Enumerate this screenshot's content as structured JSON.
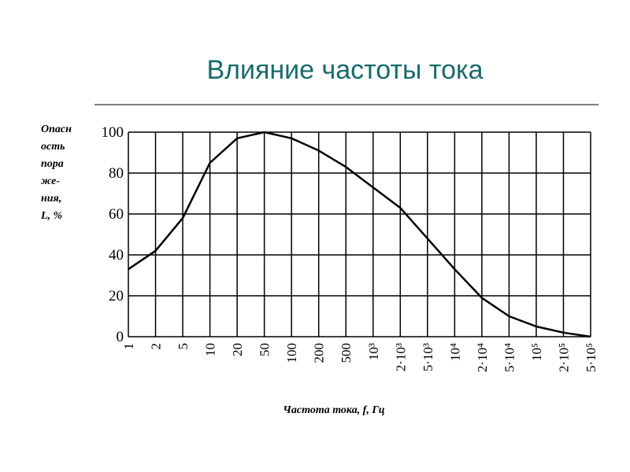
{
  "chart_data": {
    "type": "line",
    "title": "Влияние частоты тока",
    "y_label_lines": [
      "Опасн",
      "ость",
      "пора",
      "же-",
      "ния,",
      "L, %"
    ],
    "x_label": "Частота тока, f, Гц",
    "categories": [
      "1",
      "2",
      "5",
      "10",
      "20",
      "50",
      "100",
      "200",
      "500",
      "10³",
      "2·10³",
      "5·10³",
      "10⁴",
      "2·10⁴",
      "5·10⁴",
      "10⁵",
      "2·10⁵",
      "5·10⁵"
    ],
    "values": [
      33,
      42,
      58,
      85,
      97,
      100,
      97,
      91,
      83,
      73,
      63,
      48,
      33,
      19,
      10,
      5,
      2,
      0
    ],
    "color": "#000000",
    "ylim": [
      0,
      100
    ],
    "yticks": [
      0,
      20,
      40,
      60,
      80,
      100
    ],
    "grid": true
  }
}
